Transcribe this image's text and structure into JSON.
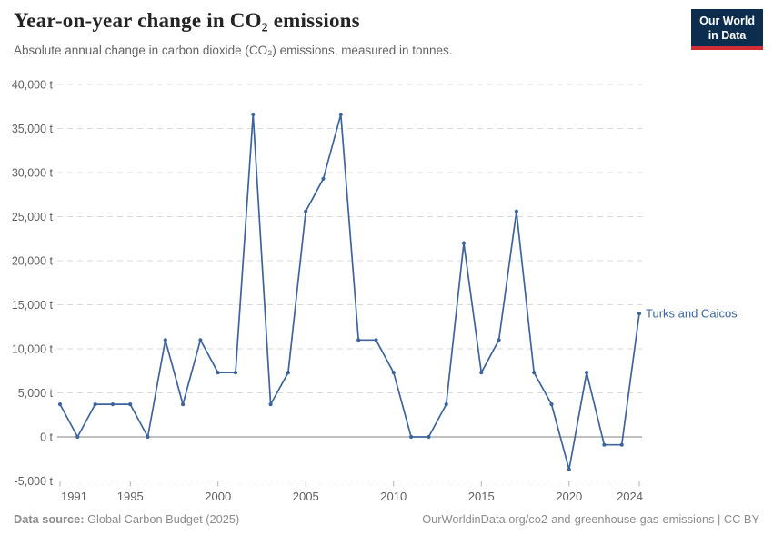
{
  "logo": {
    "line1": "Our World",
    "line2": "in Data"
  },
  "footer": {
    "source_label": "Data source:",
    "source_value": " Global Carbon Budget (2025)",
    "link": "OurWorldinData.org/co2-and-greenhouse-gas-emissions",
    "divider": " | ",
    "license": "CC BY"
  },
  "chart_data": {
    "type": "line",
    "title": "Year-on-year change in CO₂ emissions",
    "subtitle": "Absolute annual change in carbon dioxide (CO₂) emissions, measured in tonnes.",
    "entity": "Turks and Caicos",
    "unit": "t",
    "x": [
      1991,
      1992,
      1993,
      1994,
      1995,
      1996,
      1997,
      1998,
      1999,
      2000,
      2001,
      2002,
      2003,
      2004,
      2005,
      2006,
      2007,
      2008,
      2009,
      2010,
      2011,
      2012,
      2013,
      2014,
      2015,
      2016,
      2017,
      2018,
      2019,
      2020,
      2021,
      2022,
      2023,
      2024
    ],
    "values": [
      3700,
      0,
      3700,
      3700,
      3700,
      0,
      11000,
      3700,
      11000,
      7300,
      7300,
      36600,
      3700,
      7300,
      25600,
      29300,
      36600,
      11000,
      11000,
      7300,
      0,
      0,
      3700,
      22000,
      7300,
      11000,
      25600,
      7300,
      3700,
      -3700,
      7300,
      -900,
      -900,
      14000
    ],
    "xticks": [
      1991,
      1995,
      2000,
      2005,
      2010,
      2015,
      2020,
      2024
    ],
    "yticks": [
      -5000,
      0,
      5000,
      10000,
      15000,
      20000,
      25000,
      30000,
      35000,
      40000
    ],
    "xlim": [
      1991,
      2024
    ],
    "ylim": [
      -5000,
      40000
    ],
    "grid": "horizontal-dashed",
    "legend_position": "end-of-line",
    "line_color": "#3d649d",
    "axis_label_color": "#606060",
    "grid_color": "#dadada",
    "zero_line_color": "#808080"
  }
}
